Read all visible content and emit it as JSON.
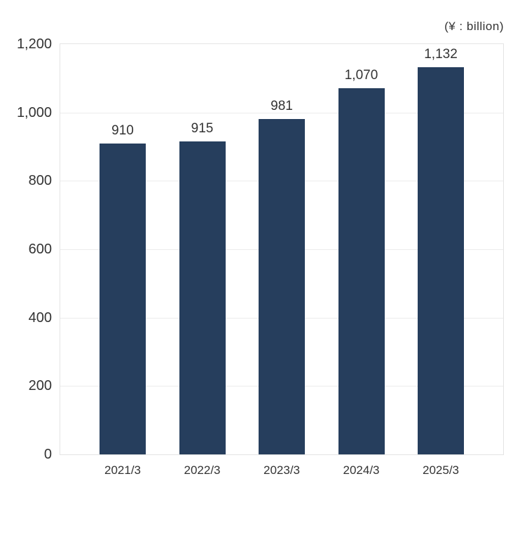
{
  "unit_label": "(¥ : billion)",
  "colors": {
    "bar": "#263e5d",
    "gridline": "#ececec",
    "plot_border": "#e4e4e4",
    "text": "#333333",
    "background": "#ffffff"
  },
  "chart_data": {
    "type": "bar",
    "categories": [
      "2021/3",
      "2022/3",
      "2023/3",
      "2024/3",
      "2025/3"
    ],
    "values": [
      910,
      915,
      981,
      1070,
      1132
    ],
    "value_labels": [
      "910",
      "915",
      "981",
      "1,070",
      "1,132"
    ],
    "title": "",
    "xlabel": "",
    "ylabel": "(¥ : billion)",
    "ylim": [
      0,
      1200
    ],
    "yticks": [
      0,
      200,
      400,
      600,
      800,
      1000,
      1200
    ],
    "ytick_labels": [
      "0",
      "200",
      "400",
      "600",
      "800",
      "1,000",
      "1,200"
    ],
    "grid": true,
    "legend": false
  }
}
